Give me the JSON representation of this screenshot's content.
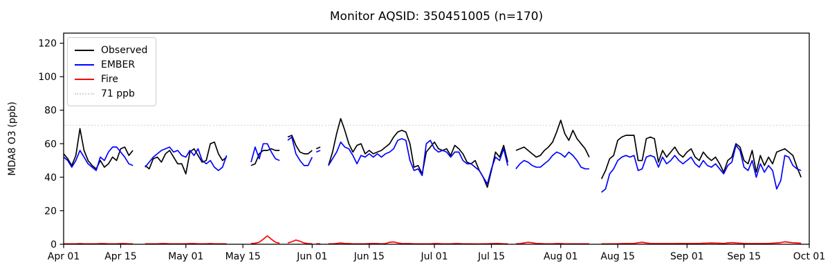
{
  "figure": {
    "title": "Monitor AQSID: 350451005 (n=170)",
    "background_color": "#ffffff"
  },
  "chart_data": {
    "type": "line",
    "title": "Monitor AQSID: 350451005 (n=170)",
    "xlabel": "",
    "ylabel": "MDA8 O3 (ppb)",
    "ylim": [
      0,
      126
    ],
    "yticks": [
      0,
      20,
      40,
      60,
      80,
      100,
      120
    ],
    "x_range_days": 183,
    "xticks": [
      {
        "label": "Apr 01",
        "day": 0
      },
      {
        "label": "Apr 15",
        "day": 14
      },
      {
        "label": "May 01",
        "day": 30
      },
      {
        "label": "May 15",
        "day": 44
      },
      {
        "label": "Jun 01",
        "day": 61
      },
      {
        "label": "Jun 15",
        "day": 75
      },
      {
        "label": "Jul 01",
        "day": 91
      },
      {
        "label": "Jul 15",
        "day": 105
      },
      {
        "label": "Aug 01",
        "day": 122
      },
      {
        "label": "Aug 15",
        "day": 136
      },
      {
        "label": "Sep 01",
        "day": 153
      },
      {
        "label": "Sep 15",
        "day": 167
      },
      {
        "label": "Oct 01",
        "day": 183
      }
    ],
    "grid": false,
    "legend_position": "upper left",
    "threshold": {
      "label": "71 ppb",
      "value": 71,
      "color": "#d3d3d3",
      "style": "dotted"
    },
    "series": [
      {
        "name": "Observed",
        "color": "#000000",
        "segments": [
          {
            "start_day": 0,
            "values": [
              54,
              51,
              47,
              53,
              69,
              56,
              50,
              47,
              45,
              50,
              46,
              48,
              52,
              50,
              57,
              58,
              53,
              56
            ]
          },
          {
            "start_day": 20,
            "values": [
              47,
              45,
              51,
              52,
              49,
              54,
              56,
              52,
              48,
              48,
              42,
              55,
              57,
              53,
              49,
              50,
              60,
              61,
              54,
              50,
              52
            ]
          },
          {
            "start_day": 46,
            "values": [
              47,
              48,
              54,
              56,
              56,
              57,
              56,
              56
            ]
          },
          {
            "start_day": 55,
            "values": [
              64,
              65,
              59,
              55,
              54,
              54,
              56
            ]
          },
          {
            "start_day": 62,
            "values": [
              57,
              58
            ]
          },
          {
            "start_day": 65,
            "values": [
              47,
              55,
              66,
              75,
              68,
              60,
              55,
              59,
              60,
              54,
              56,
              54,
              55,
              56,
              58,
              60,
              64,
              67,
              68,
              67,
              60,
              46,
              47,
              42,
              55,
              58,
              61,
              57,
              56,
              57,
              53,
              59,
              57,
              54,
              49,
              48,
              50,
              44,
              40,
              34,
              44,
              55,
              52,
              59,
              49
            ]
          },
          {
            "start_day": 111,
            "values": [
              56,
              57,
              58,
              56,
              54,
              52,
              53,
              56,
              58,
              61,
              67,
              74,
              66,
              62,
              68,
              63,
              60,
              57,
              52
            ]
          },
          {
            "start_day": 132,
            "values": [
              39,
              44,
              51,
              53,
              62,
              64,
              65,
              65,
              65,
              50,
              50,
              63,
              64,
              63,
              49,
              56,
              52,
              55,
              58,
              54,
              52,
              55,
              57,
              52,
              50,
              55,
              52,
              50,
              52,
              48,
              43,
              50,
              52,
              60,
              58,
              50,
              48,
              56,
              43,
              53,
              47,
              52,
              48,
              55,
              56,
              57,
              55,
              53,
              46,
              40
            ]
          }
        ]
      },
      {
        "name": "EMBER",
        "color": "#0000ff",
        "segments": [
          {
            "start_day": 0,
            "values": [
              52,
              50,
              46,
              50,
              56,
              52,
              48,
              46,
              44,
              52,
              50,
              55,
              58,
              58,
              55,
              52,
              48,
              47
            ]
          },
          {
            "start_day": 20,
            "values": [
              46,
              49,
              52,
              54,
              56,
              57,
              58,
              55,
              56,
              53,
              52,
              56,
              53,
              57,
              50,
              48,
              50,
              46,
              44,
              46,
              53
            ]
          },
          {
            "start_day": 46,
            "values": [
              49,
              58,
              51,
              60,
              60,
              55,
              51,
              50
            ]
          },
          {
            "start_day": 55,
            "values": [
              62,
              64,
              54,
              50,
              47,
              47,
              52
            ]
          },
          {
            "start_day": 62,
            "values": [
              55,
              56
            ]
          },
          {
            "start_day": 65,
            "values": [
              47,
              51,
              55,
              61,
              58,
              57,
              53,
              48,
              53,
              52,
              54,
              52,
              54,
              52,
              54,
              55,
              57,
              62,
              63,
              62,
              50,
              44,
              45,
              41,
              60,
              62,
              57,
              55,
              56,
              55,
              52,
              55,
              55,
              50,
              48,
              48,
              46,
              44,
              40,
              36,
              45,
              52,
              50,
              57,
              47
            ]
          },
          {
            "start_day": 111,
            "values": [
              45,
              48,
              50,
              49,
              47,
              46,
              46,
              48,
              50,
              53,
              55,
              54,
              52,
              55,
              53,
              50,
              46,
              45,
              45
            ]
          },
          {
            "start_day": 132,
            "values": [
              31,
              33,
              42,
              45,
              50,
              52,
              53,
              52,
              53,
              44,
              45,
              52,
              53,
              52,
              46,
              52,
              48,
              50,
              53,
              50,
              48,
              50,
              52,
              48,
              46,
              50,
              47,
              46,
              48,
              45,
              42,
              47,
              49,
              59,
              56,
              46,
              44,
              50,
              40,
              48,
              43,
              47,
              44,
              33,
              38,
              53,
              52,
              47,
              45,
              44
            ]
          }
        ]
      },
      {
        "name": "Fire",
        "color": "#ff0000",
        "segments": [
          {
            "start_day": 0,
            "values": [
              0.3,
              0.3,
              0.3,
              0.3,
              0.4,
              0.3,
              0.3,
              0.3,
              0.3,
              0.4,
              0.4,
              0.3,
              0.3,
              0.3,
              0.4,
              0.4,
              0.3,
              0.3
            ]
          },
          {
            "start_day": 20,
            "values": [
              0.3,
              0.3,
              0.3,
              0.3,
              0.4,
              0.4,
              0.3,
              0.3,
              0.3,
              0.3,
              0.3,
              0.4,
              0.4,
              0.3,
              0.3,
              0.3,
              0.4,
              0.3,
              0.3,
              0.3,
              0.3
            ]
          },
          {
            "start_day": 46,
            "values": [
              0.4,
              0.6,
              1.2,
              3.0,
              5.0,
              3.0,
              1.2,
              0.6
            ]
          },
          {
            "start_day": 55,
            "values": [
              0.8,
              1.5,
              2.5,
              1.8,
              0.8,
              0.4,
              0.3
            ]
          },
          {
            "start_day": 62,
            "values": [
              0.3,
              0.3
            ]
          },
          {
            "start_day": 65,
            "values": [
              0.3,
              0.3,
              0.5,
              0.8,
              0.5,
              0.4,
              0.3,
              0.3,
              0.3,
              0.3,
              0.4,
              0.5,
              0.4,
              0.3,
              0.4,
              1.2,
              1.4,
              0.8,
              0.5,
              0.4,
              0.4,
              0.3,
              0.3,
              0.3,
              0.3,
              0.3,
              0.4,
              0.4,
              0.3,
              0.3,
              0.3,
              0.4,
              0.4,
              0.3,
              0.3,
              0.3,
              0.2,
              0.2,
              0.3,
              0.3,
              0.4,
              0.5,
              0.4,
              0.3,
              0.3
            ]
          },
          {
            "start_day": 111,
            "values": [
              0.3,
              0.4,
              0.8,
              1.2,
              0.9,
              0.5,
              0.4,
              0.3,
              0.3,
              0.3,
              0.4,
              0.4,
              0.3,
              0.3,
              0.3,
              0.3,
              0.3,
              0.3,
              0.3
            ]
          },
          {
            "start_day": 132,
            "values": [
              0.3,
              0.3,
              0.3,
              0.3,
              0.3,
              0.4,
              0.4,
              0.4,
              0.5,
              0.9,
              1.2,
              0.8,
              0.5,
              0.4,
              0.4,
              0.4,
              0.4,
              0.4,
              0.4,
              0.5,
              0.5,
              0.5,
              0.5,
              0.5,
              0.5,
              0.6,
              0.7,
              0.8,
              0.7,
              0.6,
              0.5,
              0.8,
              1.0,
              0.8,
              0.6,
              0.5,
              0.4,
              0.4,
              0.4,
              0.4,
              0.5,
              0.5,
              0.6,
              0.8,
              1.0,
              1.5,
              1.2,
              0.9,
              0.8,
              0.6
            ]
          }
        ]
      }
    ]
  },
  "legend": {
    "items": [
      "Observed",
      "EMBER",
      "Fire",
      "71 ppb"
    ]
  }
}
